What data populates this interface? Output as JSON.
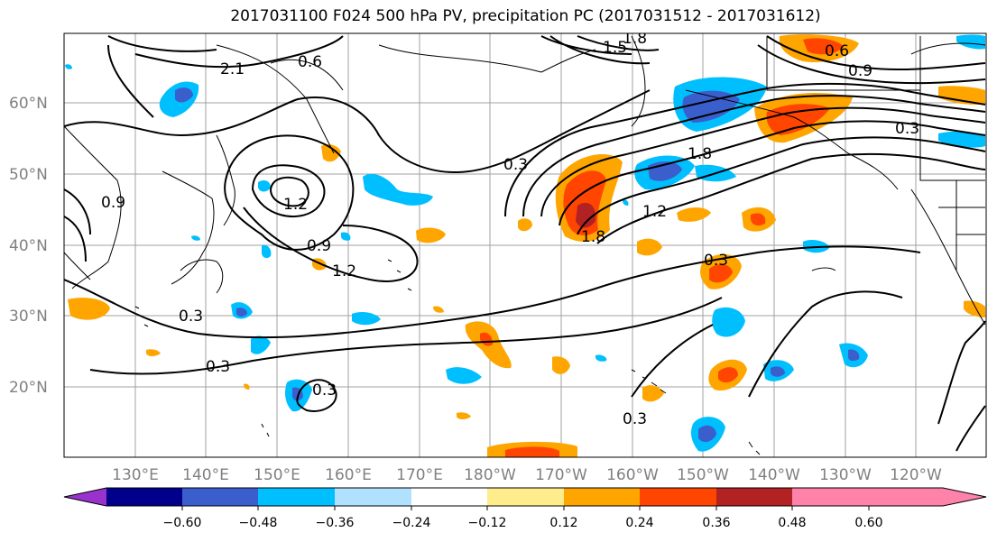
{
  "title": "2017031100 F024 500 hPa PV, precipitation PC (2017031512 - 2017031612)",
  "lat_labels": [
    "60°N",
    "50°N",
    "40°N",
    "30°N",
    "20°N"
  ],
  "lon_labels": [
    "130°E",
    "140°E",
    "150°E",
    "160°E",
    "170°E",
    "180°W",
    "170°W",
    "160°W",
    "150°W",
    "140°W",
    "130°W",
    "120°W"
  ],
  "colorbar": {
    "ticks": [
      "−0.60",
      "−0.48",
      "−0.36",
      "−0.24",
      "−0.12",
      "0.12",
      "0.24",
      "0.36",
      "0.48",
      "0.60"
    ],
    "colors": [
      "#9932cc",
      "#00008b",
      "#3a5fcd",
      "#00bfff",
      "#b0e2ff",
      "#ffffff",
      "#ffec8b",
      "#ffa500",
      "#ff4500",
      "#b22222",
      "#ff82ab"
    ]
  },
  "contour_labels": [
    "0.3",
    "0.3",
    "0.3",
    "0.3",
    "0.6",
    "0.6",
    "0.9",
    "0.9",
    "1.2",
    "1.2",
    "1.5",
    "1.8",
    "1.8",
    "2.1",
    "0.3",
    "0.3",
    "0.3",
    "0.9",
    "1.8",
    "1.2"
  ]
}
